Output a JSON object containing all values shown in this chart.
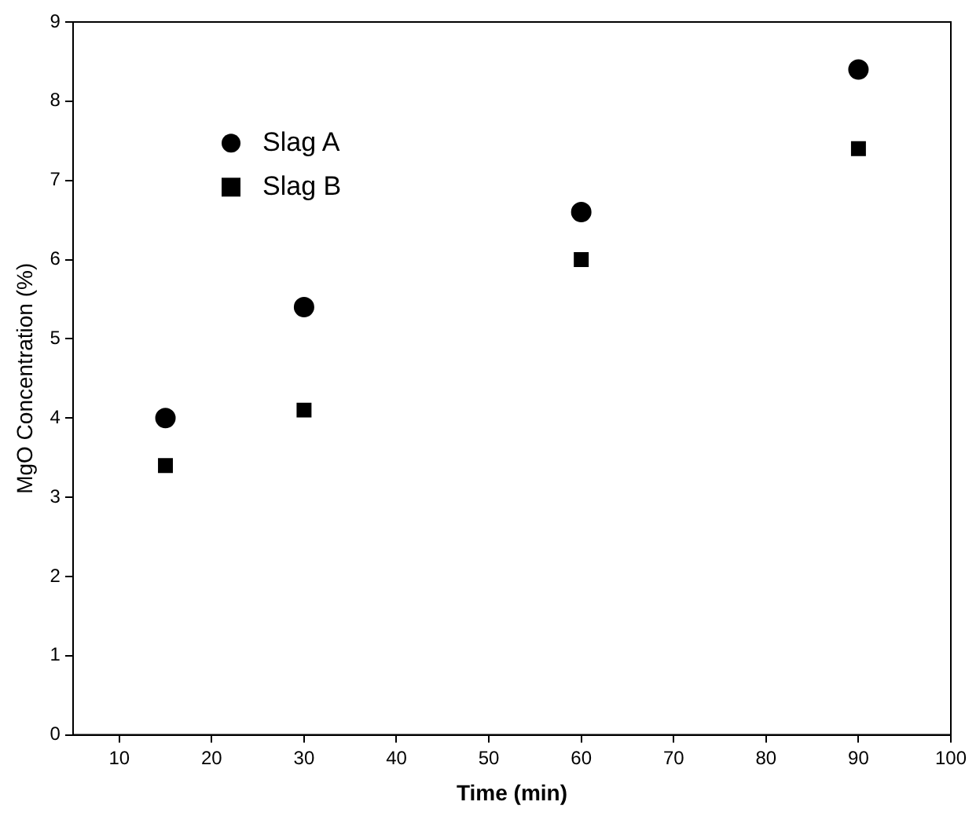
{
  "chart_data": {
    "type": "scatter",
    "xlabel": "Time (min)",
    "ylabel": "MgO Concentration (%)",
    "xlim": [
      5,
      100
    ],
    "xticks": [
      10,
      20,
      30,
      40,
      50,
      60,
      70,
      80,
      90,
      100
    ],
    "ylim": [
      0,
      9
    ],
    "yticks": [
      0,
      1,
      2,
      3,
      4,
      5,
      6,
      7,
      8,
      9
    ],
    "grid": false,
    "legend": "top left",
    "series": [
      {
        "name": "Slag A",
        "color": "#000000",
        "marker": "circle",
        "x": [
          15,
          30,
          60,
          90
        ],
        "values": [
          4.0,
          5.4,
          6.6,
          8.4
        ]
      },
      {
        "name": "Slag B",
        "color": "#000000",
        "marker": "square",
        "x": [
          15,
          30,
          60,
          90
        ],
        "values": [
          3.4,
          4.1,
          6.0,
          7.4
        ]
      }
    ]
  }
}
